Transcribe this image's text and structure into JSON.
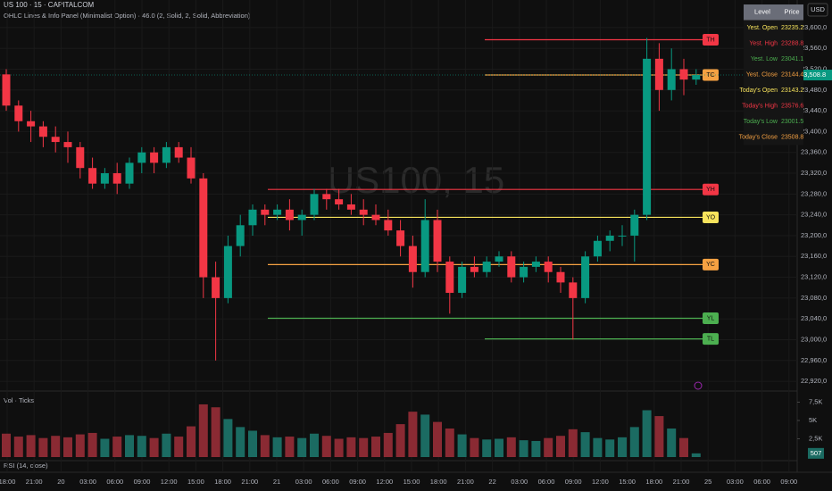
{
  "header": {
    "symbol": "US 100 · 15 · CAPITALCOM",
    "indicator": "OHLC Lines & Info Panel (Minimalist Option) · 46.0 (2, Solid, 2, Solid, Abbreviation)",
    "watermark": "US100, 15",
    "currency": "USD",
    "rsi": "RSI (14, close)"
  },
  "info_panel": {
    "columns": [
      "Level",
      "Price"
    ],
    "rows": [
      {
        "level": "Yest. Open",
        "price": 23235.2,
        "color": "#f7e35c",
        "tag": "YO"
      },
      {
        "level": "Yest. High",
        "price": 23288.8,
        "color": "#f23645",
        "tag": "YH"
      },
      {
        "level": "Yest. Low",
        "price": 23041.1,
        "color": "#4caf50",
        "tag": "YL"
      },
      {
        "level": "Yest. Close",
        "price": 23144.4,
        "color": "#f5a142",
        "tag": "YC"
      },
      {
        "level": "Today's Open",
        "price": 23143.2,
        "color": "#f7e35c"
      },
      {
        "level": "Today's High",
        "price": 23576.6,
        "color": "#f23645",
        "tag": "TH"
      },
      {
        "level": "Today's Low",
        "price": 23001.5,
        "color": "#4caf50",
        "tag": "TL"
      },
      {
        "level": "Today's Close",
        "price": 23508.8,
        "color": "#f5a142",
        "tag": "TC"
      }
    ]
  },
  "chart_data": [
    {
      "type": "candlestick",
      "up_color": "#089981",
      "down_color": "#f23645",
      "ylim": [
        22903,
        23653
      ],
      "yticks": [
        {
          "value": 23600,
          "label": "23,600,0"
        },
        {
          "value": 23560,
          "label": "23,560,0"
        },
        {
          "value": 23520,
          "label": "23,520,0"
        },
        {
          "value": 23480,
          "label": "23,480,0"
        },
        {
          "value": 23440,
          "label": "23,440,0"
        },
        {
          "value": 23400,
          "label": "23,400,0"
        },
        {
          "value": 23360,
          "label": "23,360,0"
        },
        {
          "value": 23320,
          "label": "23,320,0"
        },
        {
          "value": 23280,
          "label": "23,280,0"
        },
        {
          "value": 23240,
          "label": "23,240,0"
        },
        {
          "value": 23200,
          "label": "23,200,0"
        },
        {
          "value": 23160,
          "label": "23,160,0"
        },
        {
          "value": 23120,
          "label": "23,120,0"
        },
        {
          "value": 23080,
          "label": "23,080,0"
        },
        {
          "value": 23040,
          "label": "23,040,0"
        },
        {
          "value": 23000,
          "label": "23,000,0"
        },
        {
          "value": 22960,
          "label": "22,960,0"
        },
        {
          "value": 22920,
          "label": "22,920,0"
        }
      ],
      "last_price": {
        "value": 23508.8,
        "label": "23,508.8"
      },
      "x_labels": [
        "18:00",
        "21:00",
        "20",
        "03:00",
        "06:00",
        "09:00",
        "12:00",
        "15:00",
        "18:00",
        "21:00",
        "21",
        "03:00",
        "06:00",
        "09:00",
        "12:00",
        "15:00",
        "18:00",
        "21:00",
        "22",
        "03:00",
        "06:00",
        "09:00",
        "12:00",
        "15:00",
        "18:00",
        "21:00",
        "25",
        "03:00",
        "06:00",
        "09:00"
      ],
      "open": [
        23510,
        23450,
        23420,
        23410,
        23390,
        23380,
        23370,
        23330,
        23300,
        23320,
        23300,
        23340,
        23360,
        23340,
        23370,
        23350,
        23310,
        23120,
        23080,
        23180,
        23220,
        23250,
        23240,
        23250,
        23230,
        23240,
        23280,
        23270,
        23260,
        23250,
        23240,
        23230,
        23210,
        23180,
        23130,
        23230,
        23150,
        23090,
        23140,
        23130,
        23150,
        23160,
        23120,
        23140,
        23150,
        23130,
        23110,
        23080,
        23160,
        23190,
        23200,
        23200,
        23240,
        23540,
        23480,
        23520,
        23500
      ],
      "high": [
        23520,
        23460,
        23440,
        23420,
        23410,
        23400,
        23380,
        23350,
        23330,
        23340,
        23350,
        23370,
        23370,
        23380,
        23380,
        23370,
        23320,
        23150,
        23200,
        23240,
        23260,
        23260,
        23260,
        23270,
        23250,
        23290,
        23290,
        23290,
        23280,
        23270,
        23260,
        23250,
        23230,
        23200,
        23270,
        23250,
        23160,
        23150,
        23160,
        23160,
        23170,
        23170,
        23150,
        23160,
        23160,
        23140,
        23120,
        23170,
        23200,
        23210,
        23220,
        23250,
        23580,
        23570,
        23560,
        23540,
        23520
      ],
      "low": [
        23440,
        23400,
        23380,
        23370,
        23360,
        23340,
        23310,
        23290,
        23290,
        23280,
        23290,
        23320,
        23320,
        23330,
        23340,
        23300,
        23080,
        22960,
        23070,
        23160,
        23200,
        23220,
        23230,
        23210,
        23200,
        23230,
        23250,
        23250,
        23240,
        23220,
        23220,
        23200,
        23160,
        23100,
        23120,
        23130,
        23050,
        23080,
        23120,
        23120,
        23140,
        23110,
        23110,
        23130,
        23110,
        23090,
        23000,
        23070,
        23150,
        23170,
        23180,
        23150,
        23230,
        23440,
        23460,
        23470,
        23490
      ],
      "close": [
        23450,
        23420,
        23410,
        23390,
        23380,
        23370,
        23330,
        23300,
        23320,
        23300,
        23340,
        23360,
        23340,
        23370,
        23350,
        23310,
        23120,
        23080,
        23180,
        23220,
        23250,
        23240,
        23250,
        23230,
        23240,
        23280,
        23270,
        23260,
        23250,
        23240,
        23230,
        23210,
        23180,
        23130,
        23230,
        23150,
        23090,
        23140,
        23130,
        23150,
        23160,
        23120,
        23140,
        23150,
        23130,
        23110,
        23080,
        23160,
        23190,
        23200,
        23200,
        23240,
        23540,
        23480,
        23520,
        23500,
        23508.8
      ]
    },
    {
      "type": "bar",
      "title": "Vol · Ticks",
      "up_color": "#1b6b62",
      "down_color": "#8a2a33",
      "ylim": [
        0,
        8780
      ],
      "yticks": [
        {
          "value": 7500,
          "label": "7,5K"
        },
        {
          "value": 5000,
          "label": "5K"
        },
        {
          "value": 2500,
          "label": "2,5K"
        }
      ],
      "values": [
        3200,
        2800,
        3000,
        2600,
        2900,
        2700,
        3100,
        3300,
        2500,
        2800,
        3000,
        2900,
        2600,
        3200,
        2800,
        4200,
        7200,
        6800,
        5200,
        4100,
        3600,
        3000,
        2700,
        2800,
        2600,
        3200,
        2900,
        2500,
        2700,
        2600,
        2800,
        3300,
        4500,
        6200,
        5800,
        4800,
        3900,
        3100,
        2600,
        2400,
        2500,
        2700,
        2300,
        2200,
        2600,
        2900,
        3800,
        3400,
        2600,
        2400,
        2700,
        4100,
        6400,
        5600,
        3900,
        2600,
        507
      ]
    }
  ]
}
